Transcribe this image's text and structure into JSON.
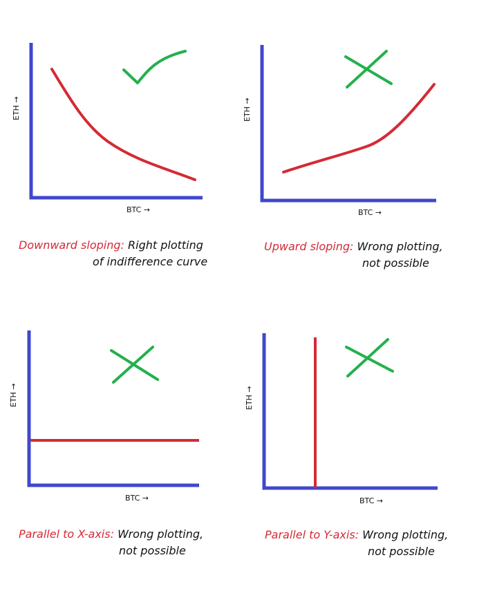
{
  "colors": {
    "axis": "#3f48cc",
    "curve": "#d42a35",
    "mark": "#22b14c",
    "caption_highlight": "#d42a35",
    "caption_text": "#111111"
  },
  "panels": [
    {
      "curve_shape": "downward-sloping",
      "mark": "check-mark",
      "y_axis_label": "ETH →",
      "x_axis_label": "BTC →",
      "caption_highlight": "Downward sloping:",
      "caption_line1": "Right plotting",
      "caption_line2": "of indifference curve"
    },
    {
      "curve_shape": "upward-sloping",
      "mark": "cross-mark",
      "y_axis_label": "ETH →",
      "x_axis_label": "BTC →",
      "caption_highlight": "Upward sloping:",
      "caption_line1": "Wrong plotting,",
      "caption_line2": "not possible"
    },
    {
      "curve_shape": "horizontal",
      "mark": "cross-mark",
      "y_axis_label": "ETH →",
      "x_axis_label": "BTC →",
      "caption_highlight": "Parallel to X-axis:",
      "caption_line1": "Wrong plotting,",
      "caption_line2": "not possible"
    },
    {
      "curve_shape": "vertical",
      "mark": "cross-mark",
      "y_axis_label": "ETH →",
      "x_axis_label": "BTC →",
      "caption_highlight": "Parallel to Y-axis:",
      "caption_line1": "Wrong plotting,",
      "caption_line2": "not possible"
    }
  ]
}
